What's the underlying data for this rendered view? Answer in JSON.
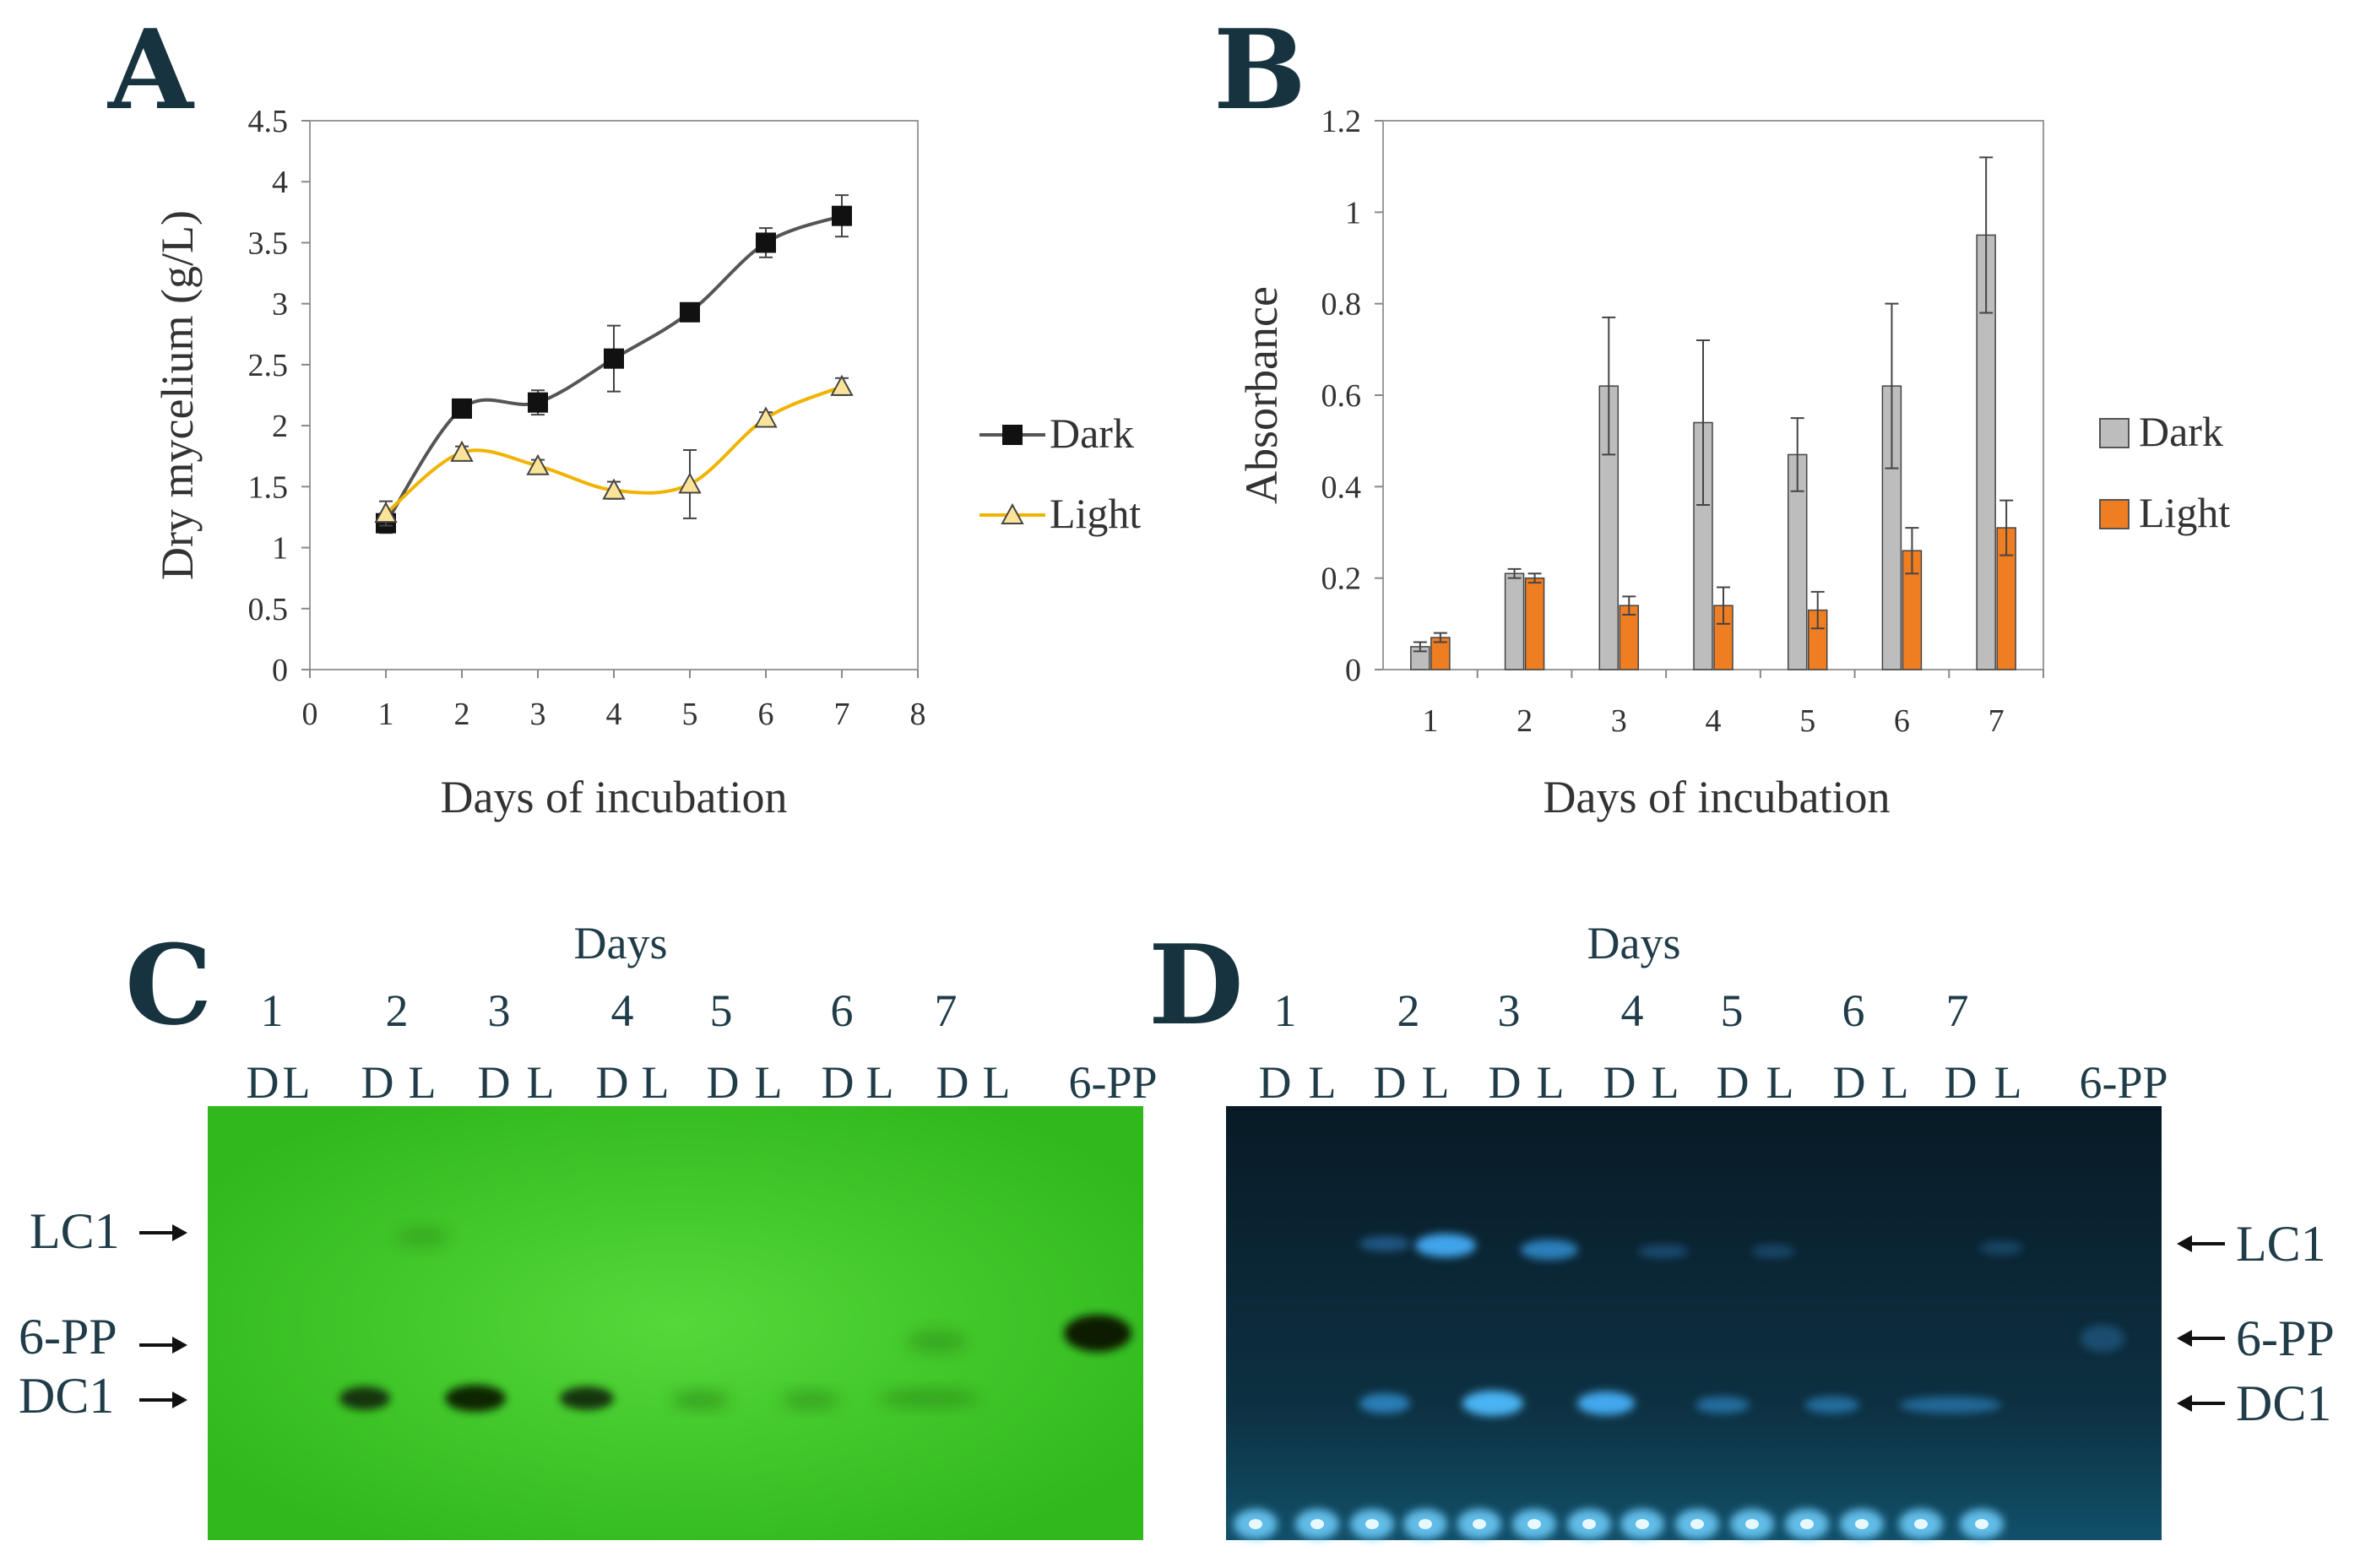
{
  "chart_data": [
    {
      "panel": "A",
      "type": "line",
      "xlabel": "Days of incubation",
      "ylabel": "Dry mycelium (g/L)",
      "xlim": [
        0,
        8
      ],
      "ylim": [
        0,
        4.5
      ],
      "x_ticks": [
        "0",
        "1",
        "2",
        "3",
        "4",
        "5",
        "6",
        "7",
        "8"
      ],
      "y_ticks": [
        "0",
        "0.5",
        "1",
        "1.5",
        "2",
        "2.5",
        "3",
        "3.5",
        "4",
        "4.5"
      ],
      "x": [
        1,
        2,
        3,
        4,
        5,
        6,
        7
      ],
      "series": [
        {
          "name": "Dark",
          "color": "#555555",
          "marker": "square",
          "values": [
            1.2,
            2.14,
            2.19,
            2.55,
            2.93,
            3.5,
            3.72
          ],
          "errors": [
            0.08,
            0.06,
            0.1,
            0.27,
            0.05,
            0.12,
            0.17
          ]
        },
        {
          "name": "Light",
          "color": "#f0b400",
          "marker": "triangle",
          "values": [
            1.28,
            1.78,
            1.67,
            1.47,
            1.52,
            2.06,
            2.32
          ],
          "errors": [
            0.1,
            0.05,
            0.05,
            0.07,
            0.28,
            0.05,
            0.07
          ]
        }
      ]
    },
    {
      "panel": "B",
      "type": "bar",
      "xlabel": "Days of incubation",
      "ylabel": "Absorbance",
      "ylim": [
        0,
        1.2
      ],
      "categories": [
        "1",
        "2",
        "3",
        "4",
        "5",
        "6",
        "7"
      ],
      "y_ticks": [
        "0",
        "0.2",
        "0.4",
        "0.6",
        "0.8",
        "1",
        "1.2"
      ],
      "series": [
        {
          "name": "Dark",
          "color": "#bdbdbd",
          "values": [
            0.05,
            0.21,
            0.62,
            0.54,
            0.47,
            0.62,
            0.95
          ],
          "errors": [
            0.01,
            0.01,
            0.15,
            0.18,
            0.08,
            0.18,
            0.17
          ]
        },
        {
          "name": "Light",
          "color": "#ef7d22",
          "values": [
            0.07,
            0.2,
            0.14,
            0.14,
            0.13,
            0.26,
            0.31
          ],
          "errors": [
            0.01,
            0.01,
            0.02,
            0.04,
            0.04,
            0.05,
            0.06
          ]
        }
      ]
    }
  ],
  "panels": {
    "A": "A",
    "B": "B",
    "C": "C",
    "D": "D"
  },
  "gels": {
    "days_title": "Days",
    "day_numbers": [
      "1",
      "2",
      "3",
      "4",
      "5",
      "6",
      "7"
    ],
    "lane_labels": [
      "D",
      "L",
      "D",
      "L",
      "D",
      "L",
      "D",
      "L",
      "D",
      "L",
      "D",
      "L",
      "D",
      "L"
    ],
    "standard_label": "6-PP",
    "band_labels": [
      "LC1",
      "6-PP",
      "DC1"
    ],
    "gel_c_color": "#3fc823",
    "gel_d_color": "#0a2130"
  }
}
